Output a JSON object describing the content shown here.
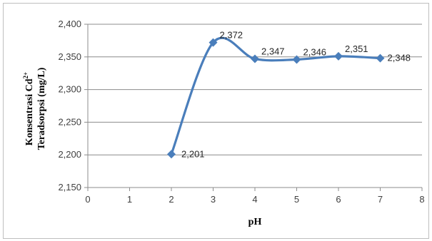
{
  "chart_data": {
    "type": "line",
    "title": "",
    "xlabel": "pH",
    "ylabel_line1": "Konsentrasi Cd",
    "ylabel_line1_sup": "2+",
    "ylabel_line2": "Teradsorpsi  (mg/L)",
    "xlim": [
      0,
      8
    ],
    "ylim": [
      2.15,
      2.4
    ],
    "x_ticks": [
      "0",
      "1",
      "2",
      "3",
      "4",
      "5",
      "6",
      "7",
      "8"
    ],
    "y_ticks": [
      "2,150",
      "2,200",
      "2,250",
      "2,300",
      "2,350",
      "2,400"
    ],
    "grid": "horizontal",
    "legend": "none",
    "series": [
      {
        "x": [
          2,
          3,
          4,
          5,
          6,
          7
        ],
        "y": [
          2.201,
          2.372,
          2.347,
          2.346,
          2.351,
          2.348
        ],
        "labels": [
          "2,201",
          "2,372",
          "2,347",
          "2,346",
          "2,351",
          "2,348"
        ],
        "color": "#4a7ebb",
        "marker": "diamond",
        "smooth": true
      }
    ]
  }
}
